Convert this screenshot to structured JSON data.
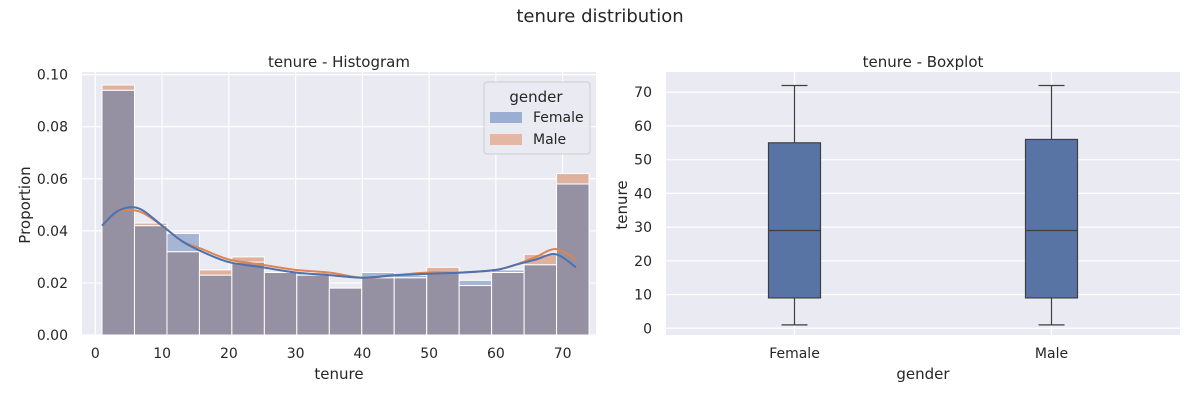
{
  "figure_title": "tenure distribution",
  "colors": {
    "female": "#4c72b0",
    "male": "#dd8452",
    "overlap": "#9690a3",
    "box": "#5874a5",
    "axes_bg": "#eaeaf2",
    "grid": "#ffffff"
  },
  "chart_data": [
    {
      "type": "bar",
      "subtype": "histogram-with-kde",
      "title": "tenure - Histogram",
      "xlabel": "tenure",
      "ylabel": "Proportion",
      "xlim": [
        -2,
        75
      ],
      "ylim": [
        0,
        0.101
      ],
      "xticks": [
        0,
        10,
        20,
        30,
        40,
        50,
        60,
        70
      ],
      "yticks": [
        "0.00",
        "0.02",
        "0.04",
        "0.06",
        "0.08",
        "0.10"
      ],
      "bin_edges": [
        1,
        5.86,
        10.73,
        15.59,
        20.45,
        25.32,
        30.18,
        35.05,
        39.91,
        44.77,
        49.64,
        54.5,
        59.36,
        64.23,
        69.09,
        73.96
      ],
      "legend": {
        "title": "gender",
        "position": "upper right",
        "labels": [
          "Female",
          "Male"
        ]
      },
      "series": [
        {
          "name": "Female",
          "values": [
            0.094,
            0.042,
            0.039,
            0.023,
            0.028,
            0.024,
            0.023,
            0.018,
            0.024,
            0.023,
            0.024,
            0.021,
            0.025,
            0.027,
            0.058
          ],
          "kde": {
            "x": [
              1,
              3,
              5,
              7,
              10,
              13,
              16,
              20,
              25,
              30,
              35,
              40,
              45,
              50,
              55,
              60,
              63,
              66,
              69,
              72
            ],
            "y": [
              0.042,
              0.047,
              0.049,
              0.048,
              0.042,
              0.036,
              0.032,
              0.028,
              0.026,
              0.024,
              0.023,
              0.022,
              0.023,
              0.0235,
              0.024,
              0.025,
              0.027,
              0.029,
              0.031,
              0.026
            ]
          }
        },
        {
          "name": "Male",
          "values": [
            0.096,
            0.043,
            0.032,
            0.025,
            0.03,
            0.024,
            0.024,
            0.018,
            0.022,
            0.022,
            0.026,
            0.019,
            0.024,
            0.031,
            0.062
          ],
          "kde": {
            "x": [
              1,
              3,
              5,
              7,
              10,
              13,
              16,
              20,
              25,
              30,
              35,
              40,
              45,
              50,
              55,
              60,
              63,
              66,
              69,
              72
            ],
            "y": [
              0.042,
              0.047,
              0.048,
              0.047,
              0.042,
              0.036,
              0.033,
              0.029,
              0.027,
              0.025,
              0.024,
              0.022,
              0.023,
              0.024,
              0.024,
              0.025,
              0.027,
              0.03,
              0.033,
              0.029
            ]
          }
        }
      ]
    },
    {
      "type": "boxplot",
      "title": "tenure - Boxplot",
      "xlabel": "gender",
      "ylabel": "tenure",
      "ylim": [
        -2,
        76
      ],
      "yticks": [
        0,
        10,
        20,
        30,
        40,
        50,
        60,
        70
      ],
      "categories": [
        "Female",
        "Male"
      ],
      "boxes": [
        {
          "name": "Female",
          "whisker_low": 1,
          "q1": 9,
          "median": 29,
          "q3": 55,
          "whisker_high": 72
        },
        {
          "name": "Male",
          "whisker_low": 1,
          "q1": 9,
          "median": 29,
          "q3": 56,
          "whisker_high": 72
        }
      ]
    }
  ]
}
